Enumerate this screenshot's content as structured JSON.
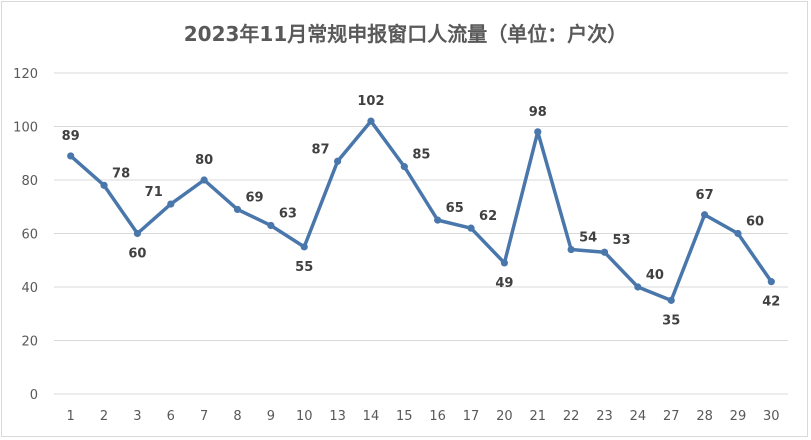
{
  "chart_data": {
    "type": "line",
    "title": "2023年11月常规申报窗口人流量（单位：户次）",
    "categories": [
      "1",
      "2",
      "3",
      "6",
      "7",
      "8",
      "9",
      "10",
      "13",
      "14",
      "15",
      "16",
      "17",
      "20",
      "21",
      "22",
      "23",
      "24",
      "27",
      "28",
      "29",
      "30"
    ],
    "series": [
      {
        "values": [
          89,
          78,
          60,
          71,
          80,
          69,
          63,
          55,
          87,
          102,
          85,
          65,
          62,
          49,
          98,
          54,
          53,
          40,
          35,
          67,
          60,
          42
        ],
        "color": "#4a77ab"
      }
    ],
    "yticks": [
      "0",
      "20",
      "40",
      "60",
      "80",
      "100",
      "120"
    ],
    "ylim": [
      0,
      120
    ],
    "grid": true,
    "legend": "none",
    "data_labels": true
  }
}
